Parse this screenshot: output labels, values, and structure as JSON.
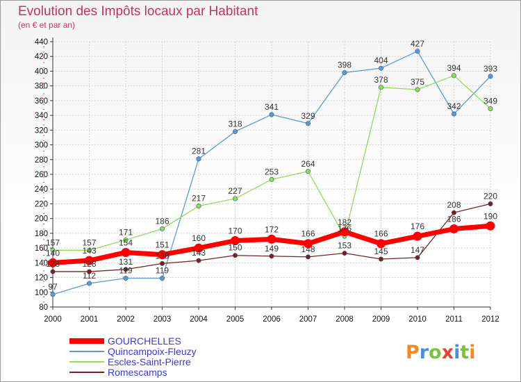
{
  "chart_data": {
    "type": "line",
    "title": "Evolution des Impôts locaux par Habitant",
    "subtitle": "(en € et par an)",
    "x": [
      "2000",
      "2001",
      "2002",
      "2003",
      "2004",
      "2005",
      "2006",
      "2007",
      "2008",
      "2009",
      "2010",
      "2011",
      "2012"
    ],
    "ylim": [
      80,
      440
    ],
    "yticks": [
      80,
      100,
      120,
      140,
      160,
      180,
      200,
      220,
      240,
      260,
      280,
      300,
      320,
      340,
      360,
      380,
      400,
      420,
      440
    ],
    "grid": true,
    "legend_position": "bottom-left",
    "series": [
      {
        "name": "GOURCHELLES",
        "color": "#ff0000",
        "values": [
          140,
          143,
          154,
          151,
          160,
          170,
          172,
          166,
          182,
          166,
          176,
          186,
          190
        ],
        "labels": [
          "140",
          "143",
          "154",
          "151",
          "160",
          "170",
          "172",
          "166",
          "182",
          "166",
          "176",
          "186",
          "190"
        ]
      },
      {
        "name": "Quincampoix-Fleuzy",
        "color": "#5b9bd5",
        "values": [
          97,
          112,
          119,
          119,
          281,
          318,
          341,
          329,
          398,
          404,
          427,
          342,
          393
        ],
        "labels": [
          "97",
          "112",
          "119",
          "119",
          "281",
          "318",
          "341",
          "329",
          "398",
          "404",
          "427",
          "342",
          "393"
        ]
      },
      {
        "name": "Escles-Saint-Pierre",
        "color": "#8fdc5a",
        "values": [
          157,
          157,
          171,
          186,
          217,
          227,
          253,
          264,
          176,
          378,
          375,
          394,
          349
        ],
        "labels": [
          "157",
          "157",
          "171",
          "186",
          "217",
          "227",
          "253",
          "264",
          "176",
          "378",
          "375",
          "394",
          "349"
        ]
      },
      {
        "name": "Romescamps",
        "color": "#7a2020",
        "values": [
          128,
          128,
          131,
          139,
          143,
          150,
          149,
          148,
          153,
          145,
          147,
          208,
          220
        ],
        "labels": [
          "128",
          "128",
          "131",
          "139",
          "143",
          "150",
          "149",
          "148",
          "153",
          "145",
          "147",
          "208",
          "220"
        ]
      }
    ]
  },
  "logo": {
    "letters": [
      "P",
      "r",
      "o",
      "x",
      "i",
      "t",
      "i"
    ],
    "colors": [
      "#f08a24",
      "#4a90d9",
      "#7cc242",
      "#e8412f",
      "#4a90d9",
      "#7cc242",
      "#f08a24"
    ]
  }
}
